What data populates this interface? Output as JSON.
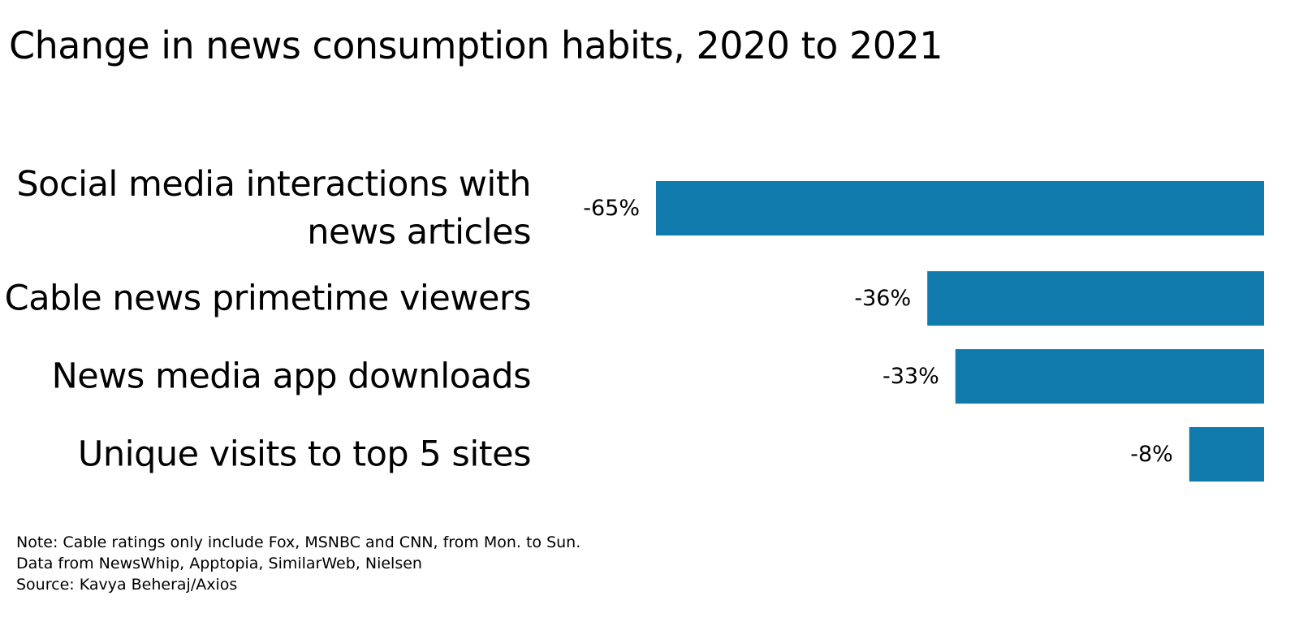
{
  "chart_data": {
    "type": "bar",
    "orientation": "horizontal",
    "title": "Change in news consumption habits, 2020 to 2021",
    "categories": [
      [
        "Social media interactions with",
        "news articles"
      ],
      [
        "Cable news primetime viewers"
      ],
      [
        "News media app downloads"
      ],
      [
        "Unique visits to top 5 sites"
      ]
    ],
    "values": [
      -65,
      -36,
      -33,
      -8
    ],
    "value_labels": [
      "-65%",
      "-36%",
      "-33%",
      "-8%"
    ],
    "value_unit": "%",
    "xlim": [
      -65,
      0
    ],
    "bar_color": "#117aad",
    "grid": false,
    "legend": "none"
  },
  "footnotes": {
    "note": "Note: Cable ratings only include Fox, MSNBC and CNN, from Mon. to Sun.",
    "data": "Data from NewsWhip, Apptopia, SimilarWeb, Nielsen",
    "source": "Source: Kavya Beheraj/Axios"
  }
}
